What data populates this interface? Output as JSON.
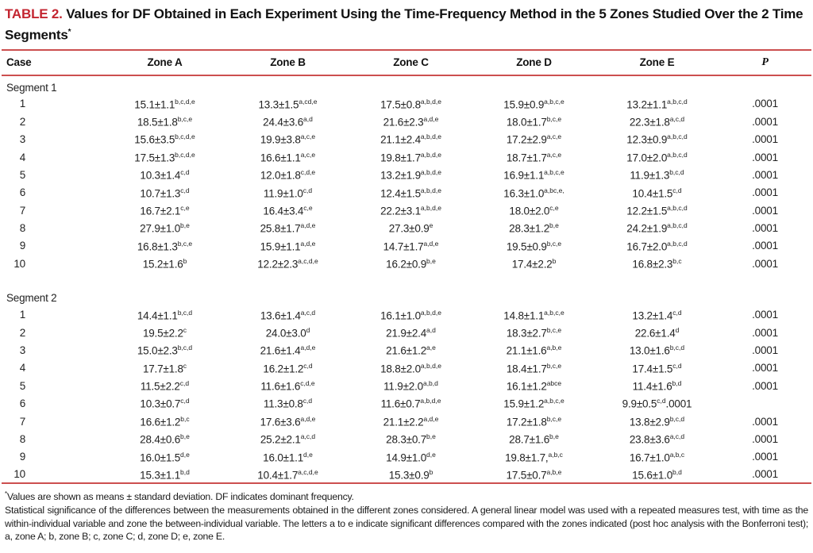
{
  "colors": {
    "accent_red": "#c32530",
    "rule_red": "#cc4f4f"
  },
  "title": {
    "number": "TABLE 2.",
    "text": " Values for DF Obtained in Each Experiment Using the Time-Frequency Method in the 5 Zones Studied Over the 2 Time Segments",
    "asterisk": "*"
  },
  "columns": [
    "Case",
    "Zone A",
    "Zone B",
    "Zone C",
    "Zone D",
    "Zone E",
    "P"
  ],
  "segments": [
    {
      "label": "Segment 1",
      "rows": [
        {
          "case": "1",
          "cells": [
            {
              "v": "15.1±1.1",
              "s": "b,c,d,e"
            },
            {
              "v": "13.3±1.5",
              "s": "a,cd,e"
            },
            {
              "v": "17.5±0.8",
              "s": "a,b,d,e"
            },
            {
              "v": "15.9±0.9",
              "s": "a,b,c,e"
            },
            {
              "v": "13.2±1.1",
              "s": "a,b,c,d"
            }
          ],
          "p": ".0001"
        },
        {
          "case": "2",
          "cells": [
            {
              "v": "18.5±1.8",
              "s": "b,c,e"
            },
            {
              "v": "24.4±3.6",
              "s": "a,d"
            },
            {
              "v": "21.6±2.3",
              "s": "a,d,e"
            },
            {
              "v": "18.0±1.7",
              "s": "b,c,e"
            },
            {
              "v": "22.3±1.8",
              "s": "a,c,d"
            }
          ],
          "p": ".0001"
        },
        {
          "case": "3",
          "cells": [
            {
              "v": "15.6±3.5",
              "s": "b,c,d,e"
            },
            {
              "v": "19.9±3.8",
              "s": "a,c,e"
            },
            {
              "v": "21.1±2.4",
              "s": "a,b,d,e"
            },
            {
              "v": "17.2±2.9",
              "s": "a,c,e"
            },
            {
              "v": "12.3±0.9",
              "s": "a,b,c,d"
            }
          ],
          "p": ".0001"
        },
        {
          "case": "4",
          "cells": [
            {
              "v": "17.5±1.3",
              "s": "b,c,d,e"
            },
            {
              "v": "16.6±1.1",
              "s": "a,c,e"
            },
            {
              "v": "19.8±1.7",
              "s": "a,b,d,e"
            },
            {
              "v": "18.7±1.7",
              "s": "a,c,e"
            },
            {
              "v": "17.0±2.0",
              "s": "a,b,c,d"
            }
          ],
          "p": ".0001"
        },
        {
          "case": "5",
          "cells": [
            {
              "v": "10.3±1.4",
              "s": "c,d"
            },
            {
              "v": "12.0±1.8",
              "s": "c,d,e"
            },
            {
              "v": "13.2±1.9",
              "s": "a,b,d,e"
            },
            {
              "v": "16.9±1.1",
              "s": "a,b,c,e"
            },
            {
              "v": "11.9±1.3",
              "s": "b,c,d"
            }
          ],
          "p": ".0001"
        },
        {
          "case": "6",
          "cells": [
            {
              "v": "10.7±1.3",
              "s": "c,d"
            },
            {
              "v": "11.9±1.0",
              "s": "c,d"
            },
            {
              "v": "12.4±1.5",
              "s": "a,b,d,e"
            },
            {
              "v": "16.3±1.0",
              "s": "a,bc,e,"
            },
            {
              "v": "10.4±1.5",
              "s": "c,d"
            }
          ],
          "p": ".0001"
        },
        {
          "case": "7",
          "cells": [
            {
              "v": "16.7±2.1",
              "s": "c,e"
            },
            {
              "v": "16.4±3.4",
              "s": "c,e"
            },
            {
              "v": "22.2±3.1",
              "s": "a,b,d,e"
            },
            {
              "v": "18.0±2.0",
              "s": "c,e"
            },
            {
              "v": "12.2±1.5",
              "s": "a,b,c,d"
            }
          ],
          "p": ".0001"
        },
        {
          "case": "8",
          "cells": [
            {
              "v": "27.9±1.0",
              "s": "b,e"
            },
            {
              "v": "25.8±1.7",
              "s": "a,d,e"
            },
            {
              "v": "27.3±0.9",
              "s": "e"
            },
            {
              "v": "28.3±1.2",
              "s": "b,e"
            },
            {
              "v": "24.2±1.9",
              "s": "a,b,c,d"
            }
          ],
          "p": ".0001"
        },
        {
          "case": "9",
          "cells": [
            {
              "v": "16.8±1.3",
              "s": "b,c,e"
            },
            {
              "v": "15.9±1.1",
              "s": "a,d,e"
            },
            {
              "v": "14.7±1.7",
              "s": "a,d,e"
            },
            {
              "v": "19.5±0.9",
              "s": "b,c,e"
            },
            {
              "v": "16.7±2.0",
              "s": "a,b,c,d"
            }
          ],
          "p": ".0001"
        },
        {
          "case": "10",
          "cells": [
            {
              "v": "15.2±1.6",
              "s": "b"
            },
            {
              "v": "12.2±2.3",
              "s": "a,c,d,e"
            },
            {
              "v": "16.2±0.9",
              "s": "b,e"
            },
            {
              "v": "17.4±2.2",
              "s": "b"
            },
            {
              "v": "16.8±2.3",
              "s": "b,c"
            }
          ],
          "p": ".0001"
        }
      ]
    },
    {
      "label": "Segment 2",
      "rows": [
        {
          "case": "1",
          "cells": [
            {
              "v": "14.4±1.1",
              "s": "b,c,d"
            },
            {
              "v": "13.6±1.4",
              "s": "a,c,d"
            },
            {
              "v": "16.1±1.0",
              "s": "a,b,d,e"
            },
            {
              "v": "14.8±1.1",
              "s": "a,b,c,e"
            },
            {
              "v": "13.2±1.4",
              "s": "c,d"
            }
          ],
          "p": ".0001"
        },
        {
          "case": "2",
          "cells": [
            {
              "v": "19.5±2.2",
              "s": "c"
            },
            {
              "v": "24.0±3.0",
              "s": "d"
            },
            {
              "v": "21.9±2.4",
              "s": "a,d"
            },
            {
              "v": "18.3±2.7",
              "s": "b,c,e"
            },
            {
              "v": "22.6±1.4",
              "s": "d"
            }
          ],
          "p": ".0001"
        },
        {
          "case": "3",
          "cells": [
            {
              "v": "15.0±2.3",
              "s": "b,c,d"
            },
            {
              "v": "21.6±1.4",
              "s": "a,d,e"
            },
            {
              "v": "21.6±1.2",
              "s": "a,e"
            },
            {
              "v": "21.1±1.6",
              "s": "a,b,e"
            },
            {
              "v": "13.0±1.6",
              "s": "b,c,d"
            }
          ],
          "p": ".0001"
        },
        {
          "case": "4",
          "cells": [
            {
              "v": "17.7±1.8",
              "s": "c"
            },
            {
              "v": "16.2±1.2",
              "s": "c,d"
            },
            {
              "v": "18.8±2.0",
              "s": "a,b,d,e"
            },
            {
              "v": "18.4±1.7",
              "s": "b,c,e"
            },
            {
              "v": "17.4±1.5",
              "s": "c,d"
            }
          ],
          "p": ".0001"
        },
        {
          "case": "5",
          "cells": [
            {
              "v": "11.5±2.2",
              "s": "c,d"
            },
            {
              "v": "11.6±1.6",
              "s": "c,d,e"
            },
            {
              "v": "11.9±2.0",
              "s": "a,b,d"
            },
            {
              "v": "16.1±1.2",
              "s": "abce"
            },
            {
              "v": "11.4±1.6",
              "s": "b,d"
            }
          ],
          "p": ".0001"
        },
        {
          "case": "6",
          "cells": [
            {
              "v": "10.3±0.7",
              "s": "c,d"
            },
            {
              "v": "11.3±0.8",
              "s": "c,d"
            },
            {
              "v": "11.6±0.7",
              "s": "a,b,d,e"
            },
            {
              "v": "15.9±1.2",
              "s": "a,b,c,e"
            },
            {
              "v": "9.9±0.5",
              "s": "c,d",
              "x": ".0001"
            }
          ],
          "p": ""
        },
        {
          "case": "7",
          "cells": [
            {
              "v": "16.6±1.2",
              "s": "b,c"
            },
            {
              "v": "17.6±3.6",
              "s": "a,d,e"
            },
            {
              "v": "21.1±2.2",
              "s": "a,d,e"
            },
            {
              "v": "17.2±1.8",
              "s": "b,c,e"
            },
            {
              "v": "13.8±2.9",
              "s": "b,c,d"
            }
          ],
          "p": ".0001"
        },
        {
          "case": "8",
          "cells": [
            {
              "v": "28.4±0.6",
              "s": "b,e"
            },
            {
              "v": "25.2±2.1",
              "s": "a,c,d"
            },
            {
              "v": "28.3±0.7",
              "s": "b,e"
            },
            {
              "v": "28.7±1.6",
              "s": "b,e"
            },
            {
              "v": "23.8±3.6",
              "s": "a,c,d"
            }
          ],
          "p": ".0001"
        },
        {
          "case": "9",
          "cells": [
            {
              "v": "16.0±1.5",
              "s": "d,e"
            },
            {
              "v": "16.0±1.1",
              "s": "d,e"
            },
            {
              "v": "14.9±1.0",
              "s": "d,e"
            },
            {
              "v": "19.8±1.7,",
              "s": "a,b,c"
            },
            {
              "v": "16.7±1.0",
              "s": "a,b,c"
            }
          ],
          "p": ".0001"
        },
        {
          "case": "10",
          "cells": [
            {
              "v": "15.3±1.1",
              "s": "b,d"
            },
            {
              "v": "10.4±1.7",
              "s": "a,c,d,e"
            },
            {
              "v": "15.3±0.9",
              "s": "b"
            },
            {
              "v": "17.5±0.7",
              "s": "a,b,e"
            },
            {
              "v": "15.6±1.0",
              "s": "b,d"
            }
          ],
          "p": ".0001"
        }
      ]
    }
  ],
  "footnote": {
    "asterisk": "*",
    "line1": "Values are shown as means ± standard deviation. DF indicates dominant frequency.",
    "paragraph": "Statistical significance of the differences between the measurements obtained in the different zones considered. A general linear model was used with a repeated measures test, with time as the within-individual variable and zone the between-individual variable. The letters a to e indicate significant differences compared with the zones indicated (post hoc analysis with the Bonferroni test); a, zone A; b, zone B; c, zone C; d, zone D; e, zone E."
  }
}
